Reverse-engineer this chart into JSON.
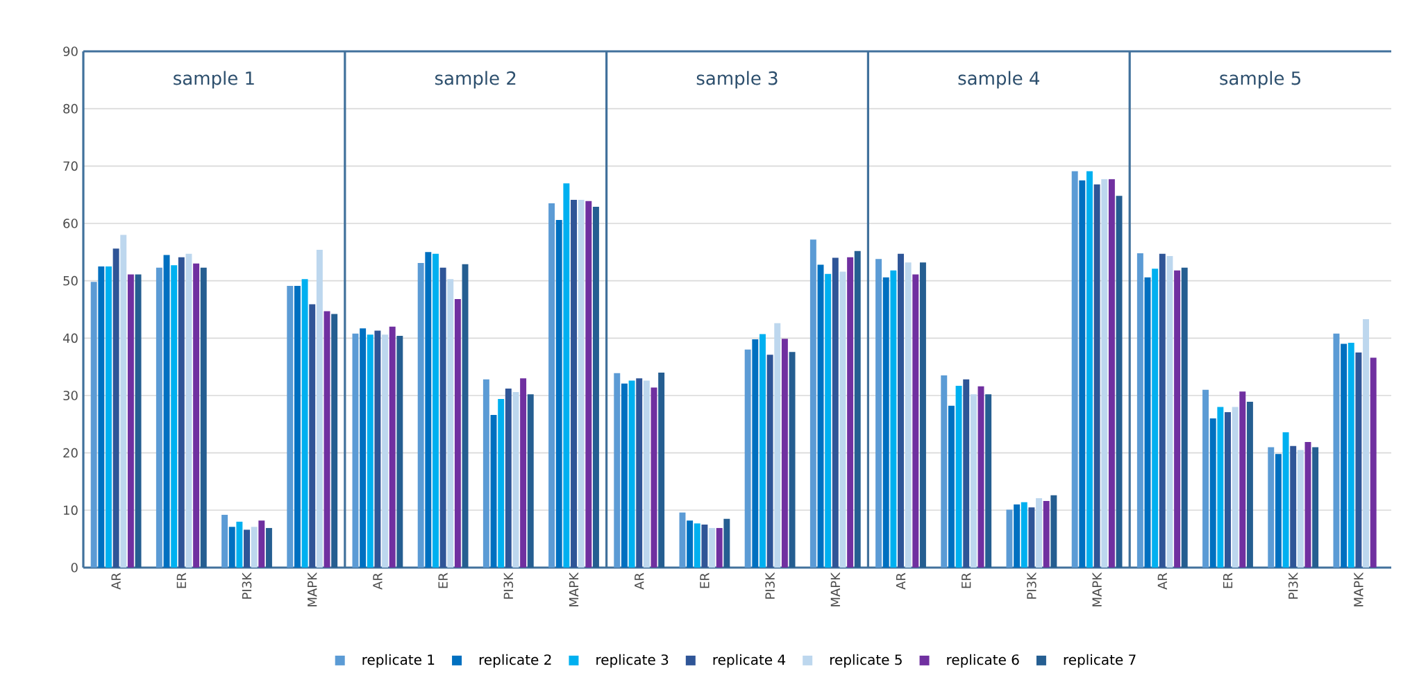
{
  "chart_data": {
    "type": "bar",
    "categories": [
      "AR",
      "ER",
      "PI3K",
      "MAPK",
      "AR",
      "ER",
      "PI3K",
      "MAPK",
      "AR",
      "ER",
      "PI3K",
      "MAPK",
      "AR",
      "ER",
      "PI3K",
      "MAPK",
      "AR",
      "ER",
      "PI3K",
      "MAPK"
    ],
    "annotations": [
      "sample 1",
      "sample 2",
      "sample 3",
      "sample 4",
      "sample 5"
    ],
    "series": [
      {
        "name": "replicate 1",
        "color": "#5b9bd5",
        "values": [
          49.8,
          52.3,
          9.2,
          49.1,
          40.8,
          53.1,
          32.8,
          63.5,
          33.9,
          9.6,
          38.0,
          57.2,
          53.8,
          33.5,
          10.1,
          69.1,
          54.8,
          31.0,
          21.0,
          40.8
        ]
      },
      {
        "name": "replicate 2",
        "color": "#0070c0",
        "values": [
          52.5,
          54.5,
          7.1,
          49.1,
          41.7,
          55.0,
          26.6,
          60.6,
          32.1,
          8.2,
          39.8,
          52.8,
          50.6,
          28.2,
          11.0,
          67.5,
          50.6,
          26.0,
          19.8,
          39.0
        ]
      },
      {
        "name": "replicate 3",
        "color": "#00b0f0",
        "values": [
          52.5,
          52.7,
          8.0,
          50.3,
          40.6,
          54.7,
          29.4,
          67.0,
          32.6,
          7.7,
          40.7,
          51.2,
          51.8,
          31.7,
          11.4,
          69.1,
          52.1,
          28.0,
          23.6,
          39.2
        ]
      },
      {
        "name": "replicate 4",
        "color": "#2f5597",
        "values": [
          55.6,
          54.1,
          6.6,
          45.9,
          41.3,
          52.3,
          31.2,
          64.1,
          33.0,
          7.5,
          37.1,
          54.0,
          54.7,
          32.8,
          10.5,
          66.8,
          54.7,
          27.1,
          21.2,
          37.5
        ]
      },
      {
        "name": "replicate 5",
        "color": "#bdd7ee",
        "values": [
          58.0,
          54.7,
          7.1,
          55.4,
          40.6,
          50.3,
          30.6,
          64.1,
          32.6,
          6.9,
          42.6,
          51.6,
          53.2,
          30.2,
          12.1,
          67.7,
          54.3,
          28.0,
          20.5,
          43.3
        ]
      },
      {
        "name": "replicate 6",
        "color": "#7030a0",
        "values": [
          51.1,
          53.0,
          8.2,
          44.7,
          42.0,
          46.8,
          33.0,
          63.9,
          31.4,
          6.9,
          39.9,
          54.1,
          51.1,
          31.6,
          11.6,
          67.7,
          51.8,
          30.7,
          21.9,
          36.6
        ]
      },
      {
        "name": "replicate 7",
        "color": "#255e91",
        "values": [
          51.1,
          52.3,
          6.9,
          44.2,
          40.4,
          52.9,
          30.2,
          62.9,
          34.0,
          8.5,
          37.6,
          55.2,
          53.2,
          30.2,
          12.6,
          64.8,
          52.3,
          28.9,
          21.0,
          null
        ]
      }
    ],
    "ylim": [
      0,
      90
    ],
    "yticks": [
      0,
      10,
      20,
      30,
      40,
      50,
      60,
      70,
      80,
      90
    ],
    "grid": "y",
    "legend": "bottom"
  }
}
